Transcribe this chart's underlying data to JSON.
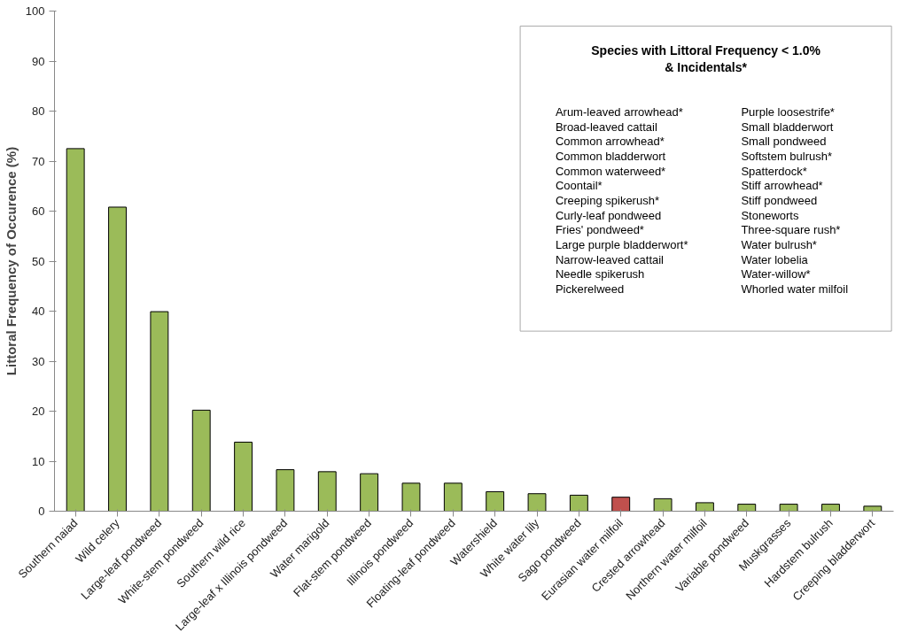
{
  "chart_data": {
    "type": "bar",
    "ylabel": "Littoral Frequency of Occurence (%)",
    "categories": [
      "Southern naiad",
      "Wild celery",
      "Large-leaf pondweed",
      "White-stem pondweed",
      "Southern wild rice",
      "Large-leaf x Illinois pondweed",
      "Water marigold",
      "Flat-stem pondweed",
      "Illinois pondweed",
      "Floating-leaf pondweed",
      "Watershield",
      "White water lily",
      "Sago pondweed",
      "Eurasian water milfoil",
      "Crested arrowhead",
      "Northern water milfoil",
      "Variable pondweed",
      "Muskgrasses",
      "Hardstem bulrush",
      "Creeping bladderwort"
    ],
    "values": [
      72.5,
      60.8,
      39.9,
      20.2,
      13.8,
      8.3,
      7.9,
      7.5,
      5.6,
      5.6,
      3.9,
      3.5,
      3.2,
      2.8,
      2.5,
      1.7,
      1.4,
      1.4,
      1.4,
      1.0
    ],
    "colors": [
      "#9bbb59",
      "#9bbb59",
      "#9bbb59",
      "#9bbb59",
      "#9bbb59",
      "#9bbb59",
      "#9bbb59",
      "#9bbb59",
      "#9bbb59",
      "#9bbb59",
      "#9bbb59",
      "#9bbb59",
      "#9bbb59",
      "#c0504d",
      "#9bbb59",
      "#9bbb59",
      "#9bbb59",
      "#9bbb59",
      "#9bbb59",
      "#9bbb59"
    ],
    "ylim": [
      0,
      100
    ],
    "yticks": [
      0,
      10,
      20,
      30,
      40,
      50,
      60,
      70,
      80,
      90,
      100
    ],
    "grid": false,
    "annotations": [
      "Species with Littoral Frequency < 1.0%\n& Incidentals*",
      "Arum-leaved arrowhead*",
      "Broad-leaved cattail",
      "Common arrowhead*",
      "Common bladderwort",
      "Common waterweed*",
      "Coontail*",
      "Creeping spikerush*",
      "Curly-leaf pondweed",
      "Fries' pondweed*",
      "Large purple bladderwort*",
      "Narrow-leaved cattail",
      "Needle spikerush",
      "Pickerelweed",
      "Purple loosestrife*",
      "Small bladderwort",
      "Small pondweed",
      "Softstem bulrush*",
      "Spatterdock*",
      "Stiff arrowhead*",
      "Stiff pondweed",
      "Stoneworts",
      "Three-square rush*",
      "Water bulrush*",
      "Water lobelia",
      "Water-willow*",
      "Whorled water milfoil"
    ]
  }
}
